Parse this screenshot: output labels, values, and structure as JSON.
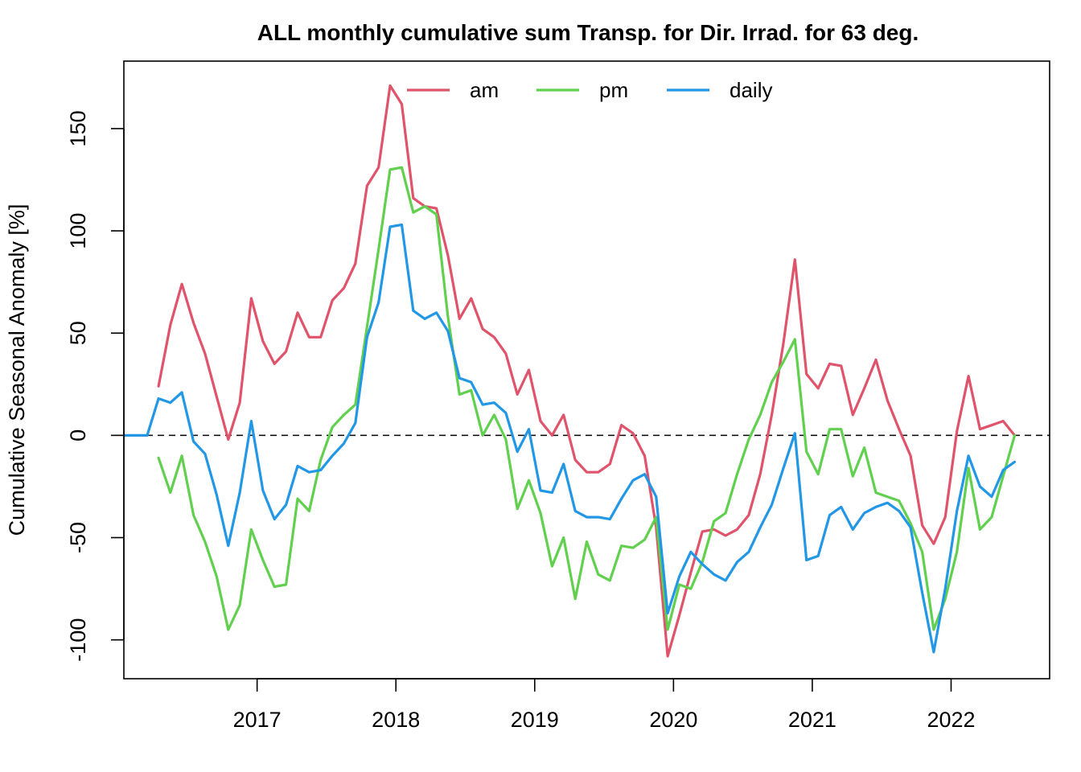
{
  "chart_data": {
    "type": "line",
    "title": "ALL monthly cumulative sum  Transp. for Dir. Irrad. for 63 deg.",
    "xlabel": "",
    "ylabel": "Cumulative Seasonal Anomaly [%]",
    "xlim": [
      2016.04,
      2022.71
    ],
    "ylim": [
      -119,
      183
    ],
    "x_ticks": [
      2017,
      2018,
      2019,
      2020,
      2021,
      2022
    ],
    "x_tick_labels": [
      "2017",
      "2018",
      "2019",
      "2020",
      "2021",
      "2022"
    ],
    "y_ticks": [
      -100,
      -50,
      0,
      50,
      100,
      150
    ],
    "y_tick_labels": [
      "-100",
      "-50",
      "0",
      "50",
      "100",
      "150"
    ],
    "reference_line": 0,
    "legend_position": "top",
    "series": [
      {
        "name": "am",
        "color": "#DF536B",
        "x": [
          2016.29,
          2016.375,
          2016.458,
          2016.542,
          2016.625,
          2016.708,
          2016.792,
          2016.875,
          2016.958,
          2017.042,
          2017.125,
          2017.208,
          2017.292,
          2017.375,
          2017.458,
          2017.542,
          2017.625,
          2017.708,
          2017.792,
          2017.875,
          2017.958,
          2018.042,
          2018.125,
          2018.208,
          2018.292,
          2018.375,
          2018.458,
          2018.542,
          2018.625,
          2018.708,
          2018.792,
          2018.875,
          2018.958,
          2019.042,
          2019.125,
          2019.208,
          2019.292,
          2019.375,
          2019.458,
          2019.542,
          2019.625,
          2019.708,
          2019.792,
          2019.875,
          2019.958,
          2020.042,
          2020.125,
          2020.208,
          2020.292,
          2020.375,
          2020.458,
          2020.542,
          2020.625,
          2020.708,
          2020.792,
          2020.875,
          2020.958,
          2021.042,
          2021.125,
          2021.208,
          2021.292,
          2021.375,
          2021.458,
          2021.542,
          2021.625,
          2021.708,
          2021.792,
          2021.875,
          2021.958,
          2022.042,
          2022.125,
          2022.208,
          2022.292,
          2022.375,
          2022.458
        ],
        "y": [
          24,
          54,
          74,
          55,
          40,
          19,
          -2,
          16,
          67,
          46,
          35,
          41,
          60,
          48,
          48,
          66,
          72,
          84,
          122,
          131,
          171,
          162,
          116,
          112,
          111,
          88,
          57,
          67,
          52,
          48,
          40,
          20,
          32,
          7,
          0,
          10,
          -12,
          -18,
          -18,
          -14,
          5,
          1,
          -10,
          -45,
          -108,
          -88,
          -67,
          -47,
          -46,
          -49,
          -46,
          -39,
          -19,
          10,
          45,
          86,
          30,
          23,
          35,
          34,
          10,
          23,
          37,
          17,
          3,
          -10,
          -44,
          -53,
          -40,
          2,
          29,
          3,
          5,
          7,
          0
        ],
        "values_note": ""
      },
      {
        "name": "pm",
        "color": "#61D04F",
        "x": [
          2016.29,
          2016.375,
          2016.458,
          2016.542,
          2016.625,
          2016.708,
          2016.792,
          2016.875,
          2016.958,
          2017.042,
          2017.125,
          2017.208,
          2017.292,
          2017.375,
          2017.458,
          2017.542,
          2017.625,
          2017.708,
          2017.792,
          2017.875,
          2017.958,
          2018.042,
          2018.125,
          2018.208,
          2018.292,
          2018.375,
          2018.458,
          2018.542,
          2018.625,
          2018.708,
          2018.792,
          2018.875,
          2018.958,
          2019.042,
          2019.125,
          2019.208,
          2019.292,
          2019.375,
          2019.458,
          2019.542,
          2019.625,
          2019.708,
          2019.792,
          2019.875,
          2019.958,
          2020.042,
          2020.125,
          2020.208,
          2020.292,
          2020.375,
          2020.458,
          2020.542,
          2020.625,
          2020.708,
          2020.792,
          2020.875,
          2020.958,
          2021.042,
          2021.125,
          2021.208,
          2021.292,
          2021.375,
          2021.458,
          2021.542,
          2021.625,
          2021.708,
          2021.792,
          2021.875,
          2021.958,
          2022.042,
          2022.125,
          2022.208,
          2022.292,
          2022.375,
          2022.458
        ],
        "y": [
          -11,
          -28,
          -10,
          -39,
          -52,
          -69,
          -95,
          -83,
          -46,
          -61,
          -74,
          -73,
          -31,
          -37,
          -12,
          4,
          10,
          15,
          53,
          91,
          130,
          131,
          109,
          112,
          108,
          58,
          20,
          22,
          0,
          10,
          -2,
          -36,
          -22,
          -38,
          -64,
          -50,
          -80,
          -52,
          -68,
          -71,
          -54,
          -55,
          -51,
          -40,
          -95,
          -73,
          -75,
          -62,
          -42,
          -38,
          -19,
          -2,
          10,
          26,
          36,
          47,
          -8,
          -19,
          3,
          3,
          -20,
          -6,
          -28,
          -30,
          -32,
          -43,
          -57,
          -95,
          -80,
          -57,
          -16,
          -46,
          -40,
          -20,
          0
        ],
        "values_note": ""
      },
      {
        "name": "daily",
        "color": "#2297E6",
        "x": [
          2016.04,
          2016.125,
          2016.208,
          2016.29,
          2016.375,
          2016.458,
          2016.542,
          2016.625,
          2016.708,
          2016.792,
          2016.875,
          2016.958,
          2017.042,
          2017.125,
          2017.208,
          2017.292,
          2017.375,
          2017.458,
          2017.542,
          2017.625,
          2017.708,
          2017.792,
          2017.875,
          2017.958,
          2018.042,
          2018.125,
          2018.208,
          2018.292,
          2018.375,
          2018.458,
          2018.542,
          2018.625,
          2018.708,
          2018.792,
          2018.875,
          2018.958,
          2019.042,
          2019.125,
          2019.208,
          2019.292,
          2019.375,
          2019.458,
          2019.542,
          2019.625,
          2019.708,
          2019.792,
          2019.875,
          2019.958,
          2020.042,
          2020.125,
          2020.208,
          2020.292,
          2020.375,
          2020.458,
          2020.542,
          2020.625,
          2020.708,
          2020.792,
          2020.875,
          2020.958,
          2021.042,
          2021.125,
          2021.208,
          2021.292,
          2021.375,
          2021.458,
          2021.542,
          2021.625,
          2021.708,
          2021.792,
          2021.875,
          2021.958,
          2022.042,
          2022.125,
          2022.208,
          2022.292,
          2022.375,
          2022.458
        ],
        "y": [
          0,
          0,
          0,
          18,
          16,
          21,
          -3,
          -9,
          -29,
          -54,
          -28,
          7,
          -27,
          -41,
          -34,
          -15,
          -18,
          -17,
          -10,
          -4,
          6,
          48,
          65,
          102,
          103,
          61,
          57,
          60,
          51,
          28,
          26,
          15,
          16,
          11,
          -8,
          3,
          -27,
          -28,
          -14,
          -37,
          -40,
          -40,
          -41,
          -31,
          -22,
          -19,
          -30,
          -87,
          -69,
          -57,
          -63,
          -68,
          -71,
          -62,
          -57,
          -45,
          -34,
          -16,
          1,
          -61,
          -59,
          -39,
          -35,
          -46,
          -38,
          -35,
          -33,
          -37,
          -45,
          -77,
          -106,
          -75,
          -37,
          -10,
          -25,
          -30,
          -17,
          -13
        ],
        "values_note": ""
      }
    ]
  }
}
